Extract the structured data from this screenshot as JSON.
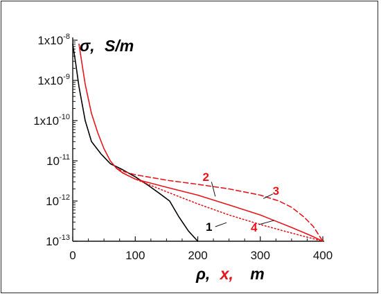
{
  "chart_data": {
    "type": "line",
    "y_scale": "log",
    "xlim": [
      0,
      400
    ],
    "ylim": [
      1e-13,
      1e-08
    ],
    "grid": false,
    "legend": "none",
    "x_tick_labels": [
      "0",
      "100",
      "200",
      "300",
      "400"
    ],
    "x_tick_values": [
      0,
      100,
      200,
      300,
      400
    ],
    "y_ticks": [
      {
        "value": 1e-08,
        "base": "1x10",
        "exp": "-8"
      },
      {
        "value": 1e-09,
        "base": "1x10",
        "exp": "-9"
      },
      {
        "value": 1e-10,
        "base": "1x10",
        "exp": "-10"
      },
      {
        "value": 1e-11,
        "base": "10",
        "exp": "-11"
      },
      {
        "value": 1e-12,
        "base": "10",
        "exp": "-12"
      },
      {
        "value": 1e-13,
        "base": "10",
        "exp": "-13"
      }
    ],
    "ylabel": {
      "symbol": "σ,",
      "unit": "S/m"
    },
    "xlabel": {
      "part1": "ρ,",
      "part2": "x,",
      "unit": "m"
    },
    "colors": {
      "black": "#000000",
      "red": "#e8141c",
      "axis": "#111111"
    },
    "series": [
      {
        "id": "1",
        "color": "#000000",
        "dash": "solid",
        "x": [
          0,
          5,
          10,
          20,
          30,
          45,
          60,
          80,
          100,
          120,
          140,
          155,
          170,
          185,
          200
        ],
        "y": [
          8e-09,
          2.5e-09,
          7e-10,
          1e-10,
          3e-11,
          1.5e-11,
          8.5e-12,
          6e-12,
          4e-12,
          2.5e-12,
          1.5e-12,
          1e-12,
          4e-13,
          1.8e-13,
          1e-13
        ]
      },
      {
        "id": "2",
        "color": "#e8141c",
        "dash": "solid",
        "x": [
          10,
          15,
          20,
          30,
          40,
          50,
          60,
          70,
          80,
          100,
          150,
          200,
          250,
          300,
          350,
          380,
          400
        ],
        "y": [
          8e-09,
          2.5e-09,
          8e-10,
          1.5e-10,
          5e-11,
          2e-11,
          1e-11,
          6.5e-12,
          5e-12,
          3.5e-12,
          2.2e-12,
          1.4e-12,
          8e-13,
          4.5e-13,
          2.2e-13,
          1.4e-13,
          1e-13
        ]
      },
      {
        "id": "3",
        "color": "#e8141c",
        "dash": "dashed",
        "x": [
          70,
          80,
          100,
          150,
          200,
          250,
          300,
          330,
          350,
          370,
          385,
          400
        ],
        "y": [
          6.5e-12,
          5.5e-12,
          4.5e-12,
          3.3e-12,
          2.6e-12,
          2e-12,
          1.4e-12,
          1e-12,
          7e-13,
          4e-13,
          2.3e-13,
          1e-13
        ]
      },
      {
        "id": "4",
        "color": "#e8141c",
        "dash": "dotted",
        "x": [
          70,
          80,
          100,
          150,
          200,
          250,
          300,
          350,
          400
        ],
        "y": [
          6.5e-12,
          5e-12,
          3.5e-12,
          1.7e-12,
          8.5e-13,
          4.5e-13,
          2.6e-13,
          1.6e-13,
          1e-13
        ]
      }
    ],
    "callouts": [
      {
        "label": "1",
        "color": "#000000",
        "x": 218,
        "y": 2.3e-13,
        "leader_x": [
          228,
          246
        ],
        "leader_y": [
          2.3e-13,
          2.9e-13
        ]
      },
      {
        "label": "2",
        "color": "#e8141c",
        "x": 213,
        "y": 4e-12,
        "leader_x": [
          222,
          228
        ],
        "leader_y": [
          3e-12,
          1.3e-12
        ]
      },
      {
        "label": "3",
        "color": "#e8141c",
        "x": 325,
        "y": 1.8e-12,
        "leader_x": [
          320,
          305
        ],
        "leader_y": [
          1.5e-12,
          1.15e-12
        ]
      },
      {
        "label": "4",
        "color": "#e8141c",
        "x": 290,
        "y": 2.2e-13,
        "leader_x": [
          298,
          322
        ],
        "leader_y": [
          2.6e-13,
          3.3e-13
        ]
      }
    ]
  }
}
